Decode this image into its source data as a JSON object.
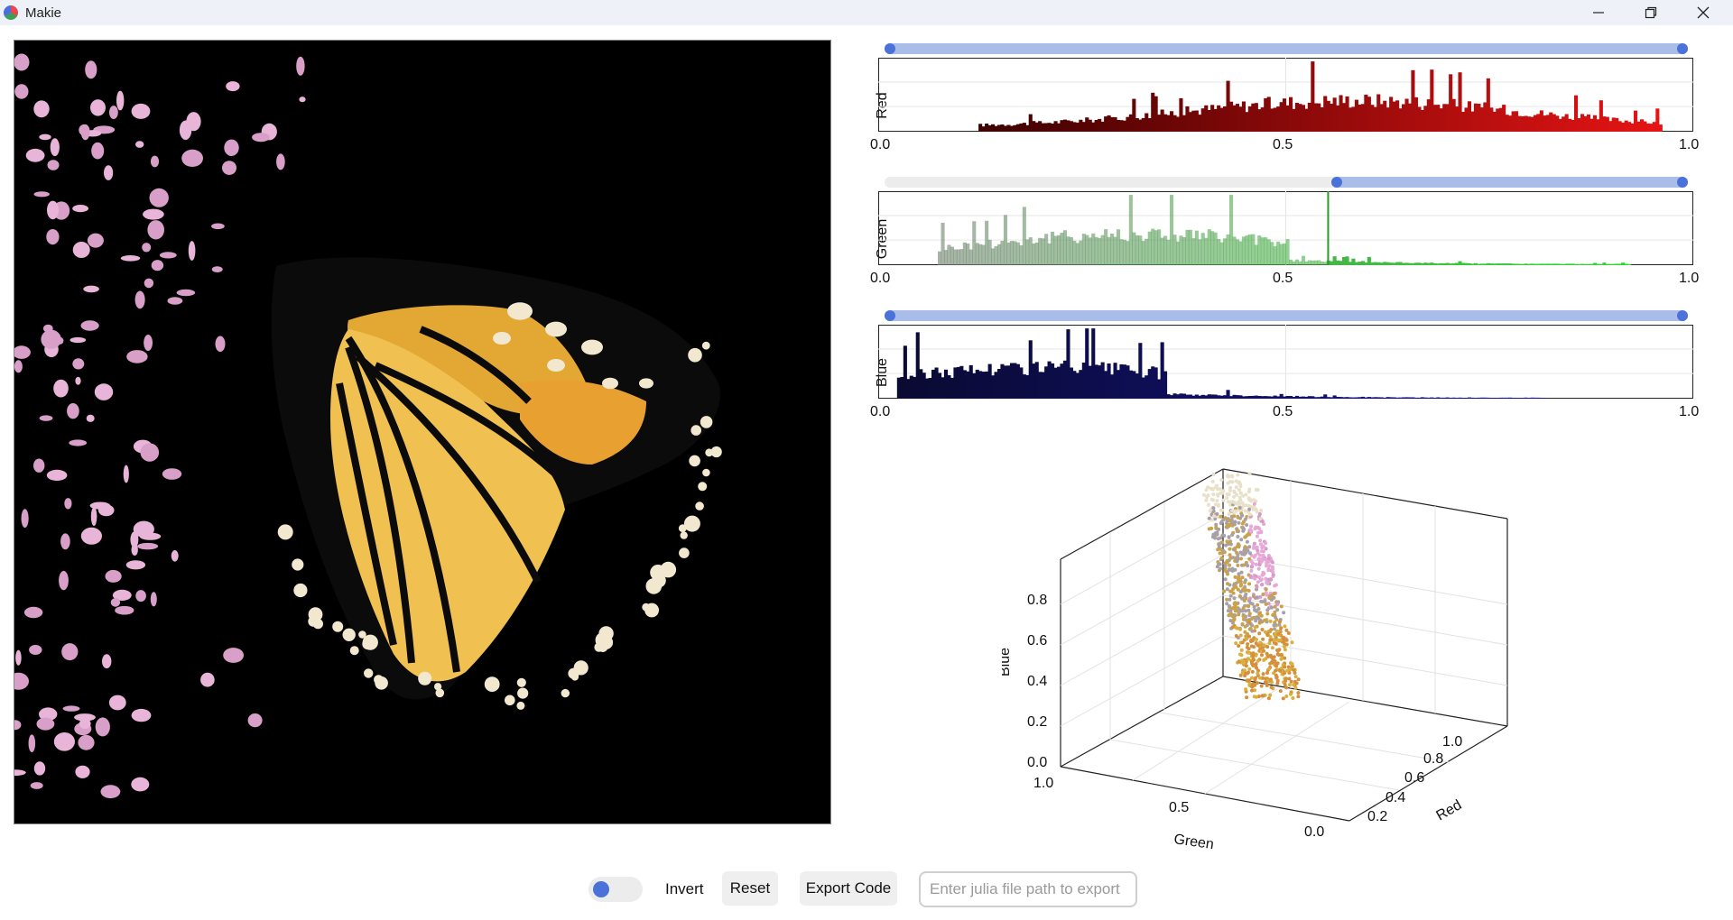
{
  "window": {
    "title": "Makie"
  },
  "histograms": [
    {
      "channel": "Red",
      "range": [
        0.0,
        1.0
      ],
      "ticks": [
        "0.0",
        "0.5",
        "1.0"
      ],
      "color": "#d62020"
    },
    {
      "channel": "Green",
      "range": [
        0.55,
        1.0
      ],
      "ticks": [
        "0.0",
        "0.5",
        "1.0"
      ],
      "color": "#3aa83a"
    },
    {
      "channel": "Blue",
      "range": [
        0.0,
        1.0
      ],
      "ticks": [
        "0.0",
        "0.5",
        "1.0"
      ],
      "color": "#1a1a8a"
    }
  ],
  "scatter3d": {
    "axes": {
      "blue": {
        "label": "Blue",
        "ticks": [
          "0.0",
          "0.2",
          "0.4",
          "0.6",
          "0.8"
        ]
      },
      "green": {
        "label": "Green",
        "ticks": [
          "1.0",
          "0.5",
          "0.0"
        ]
      },
      "red": {
        "label": "Red",
        "ticks": [
          "0.2",
          "0.4",
          "0.6",
          "0.8",
          "1.0"
        ]
      }
    },
    "colors": [
      "#e6a8d6",
      "#d59ac8",
      "#c9a24a",
      "#d9b03c",
      "#a8a0a8",
      "#e8e0c8",
      "#d4903c"
    ]
  },
  "controls": {
    "invert_label": "Invert",
    "reset_label": "Reset",
    "export_label": "Export Code",
    "path_placeholder": "Enter julia file path to export",
    "invert_on": false
  }
}
